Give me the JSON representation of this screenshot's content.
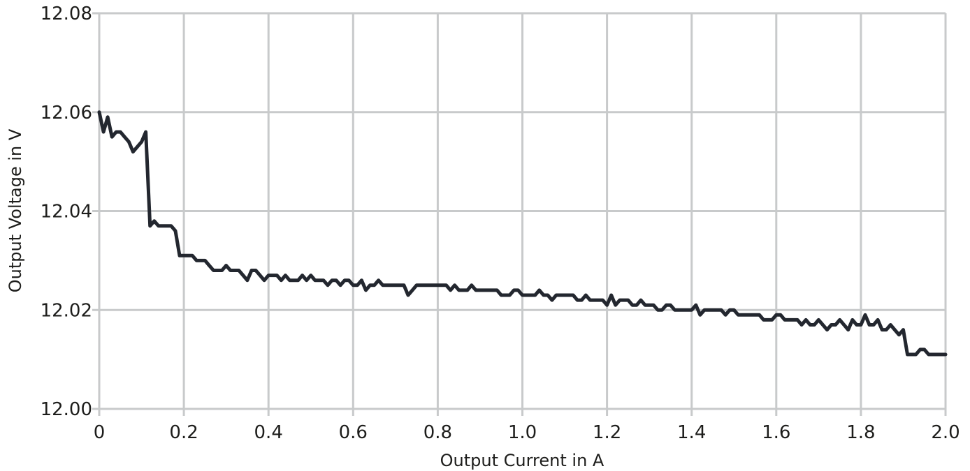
{
  "chart_data": {
    "type": "line",
    "title": "",
    "xlabel": "Output Current in A",
    "ylabel": "Output Voltage in V",
    "xlim": [
      0,
      2.0
    ],
    "ylim": [
      12.0,
      12.08
    ],
    "xticks": [
      "0",
      "0.2",
      "0.4",
      "0.6",
      "0.8",
      "1.0",
      "1.2",
      "1.4",
      "1.6",
      "1.8",
      "2.0"
    ],
    "yticks": [
      "12.00",
      "12.02",
      "12.04",
      "12.06",
      "12.08"
    ],
    "grid": true,
    "line_color": "#23272f",
    "grid_color": "#c8cacb",
    "series": [
      {
        "x": [
          0.0,
          0.01,
          0.02,
          0.03,
          0.04,
          0.05,
          0.06,
          0.07,
          0.08,
          0.09,
          0.1,
          0.11,
          0.12,
          0.13,
          0.14,
          0.15,
          0.16,
          0.17,
          0.18,
          0.19,
          0.2,
          0.21,
          0.22,
          0.23,
          0.24,
          0.25,
          0.26,
          0.27,
          0.28,
          0.29,
          0.3,
          0.31,
          0.32,
          0.33,
          0.34,
          0.35,
          0.36,
          0.37,
          0.38,
          0.39,
          0.4,
          0.41,
          0.42,
          0.43,
          0.44,
          0.45,
          0.46,
          0.47,
          0.48,
          0.49,
          0.5,
          0.51,
          0.52,
          0.53,
          0.54,
          0.55,
          0.56,
          0.57,
          0.58,
          0.59,
          0.6,
          0.61,
          0.62,
          0.63,
          0.64,
          0.65,
          0.66,
          0.67,
          0.68,
          0.69,
          0.7,
          0.71,
          0.72,
          0.73,
          0.74,
          0.75,
          0.76,
          0.77,
          0.78,
          0.79,
          0.8,
          0.81,
          0.82,
          0.83,
          0.84,
          0.85,
          0.86,
          0.87,
          0.88,
          0.89,
          0.9,
          0.91,
          0.92,
          0.93,
          0.94,
          0.95,
          0.96,
          0.97,
          0.98,
          0.99,
          1.0,
          1.01,
          1.02,
          1.03,
          1.04,
          1.05,
          1.06,
          1.07,
          1.08,
          1.09,
          1.1,
          1.11,
          1.12,
          1.13,
          1.14,
          1.15,
          1.16,
          1.17,
          1.18,
          1.19,
          1.2,
          1.21,
          1.22,
          1.23,
          1.24,
          1.25,
          1.26,
          1.27,
          1.28,
          1.29,
          1.3,
          1.31,
          1.32,
          1.33,
          1.34,
          1.35,
          1.36,
          1.37,
          1.38,
          1.39,
          1.4,
          1.41,
          1.42,
          1.43,
          1.44,
          1.45,
          1.46,
          1.47,
          1.48,
          1.49,
          1.5,
          1.51,
          1.52,
          1.53,
          1.54,
          1.55,
          1.56,
          1.57,
          1.58,
          1.59,
          1.6,
          1.61,
          1.62,
          1.63,
          1.64,
          1.65,
          1.66,
          1.67,
          1.68,
          1.69,
          1.7,
          1.71,
          1.72,
          1.73,
          1.74,
          1.75,
          1.76,
          1.77,
          1.78,
          1.79,
          1.8,
          1.81,
          1.82,
          1.83,
          1.84,
          1.85,
          1.86,
          1.87,
          1.88,
          1.89,
          1.9,
          1.91,
          1.92,
          1.93,
          1.94,
          1.95,
          1.96,
          1.97,
          1.98,
          1.99,
          2.0
        ],
        "y": [
          12.06,
          12.056,
          12.059,
          12.055,
          12.056,
          12.056,
          12.055,
          12.054,
          12.052,
          12.053,
          12.054,
          12.056,
          12.037,
          12.038,
          12.037,
          12.037,
          12.037,
          12.037,
          12.036,
          12.031,
          12.031,
          12.031,
          12.031,
          12.03,
          12.03,
          12.03,
          12.029,
          12.028,
          12.028,
          12.028,
          12.029,
          12.028,
          12.028,
          12.028,
          12.027,
          12.026,
          12.028,
          12.028,
          12.027,
          12.026,
          12.027,
          12.027,
          12.027,
          12.026,
          12.027,
          12.026,
          12.026,
          12.026,
          12.027,
          12.026,
          12.027,
          12.026,
          12.026,
          12.026,
          12.025,
          12.026,
          12.026,
          12.025,
          12.026,
          12.026,
          12.025,
          12.025,
          12.026,
          12.024,
          12.025,
          12.025,
          12.026,
          12.025,
          12.025,
          12.025,
          12.025,
          12.025,
          12.025,
          12.023,
          12.024,
          12.025,
          12.025,
          12.025,
          12.025,
          12.025,
          12.025,
          12.025,
          12.025,
          12.024,
          12.025,
          12.024,
          12.024,
          12.024,
          12.025,
          12.024,
          12.024,
          12.024,
          12.024,
          12.024,
          12.024,
          12.023,
          12.023,
          12.023,
          12.024,
          12.024,
          12.023,
          12.023,
          12.023,
          12.023,
          12.024,
          12.023,
          12.023,
          12.022,
          12.023,
          12.023,
          12.023,
          12.023,
          12.023,
          12.022,
          12.022,
          12.023,
          12.022,
          12.022,
          12.022,
          12.022,
          12.021,
          12.023,
          12.021,
          12.022,
          12.022,
          12.022,
          12.021,
          12.021,
          12.022,
          12.021,
          12.021,
          12.021,
          12.02,
          12.02,
          12.021,
          12.021,
          12.02,
          12.02,
          12.02,
          12.02,
          12.02,
          12.021,
          12.019,
          12.02,
          12.02,
          12.02,
          12.02,
          12.02,
          12.019,
          12.02,
          12.02,
          12.019,
          12.019,
          12.019,
          12.019,
          12.019,
          12.019,
          12.018,
          12.018,
          12.018,
          12.019,
          12.019,
          12.018,
          12.018,
          12.018,
          12.018,
          12.017,
          12.018,
          12.017,
          12.017,
          12.018,
          12.017,
          12.016,
          12.017,
          12.017,
          12.018,
          12.017,
          12.016,
          12.018,
          12.017,
          12.017,
          12.019,
          12.017,
          12.017,
          12.018,
          12.016,
          12.016,
          12.017,
          12.016,
          12.015,
          12.016,
          12.011,
          12.011,
          12.011,
          12.012,
          12.012,
          12.011,
          12.011,
          12.011,
          12.011,
          12.011
        ]
      }
    ]
  }
}
